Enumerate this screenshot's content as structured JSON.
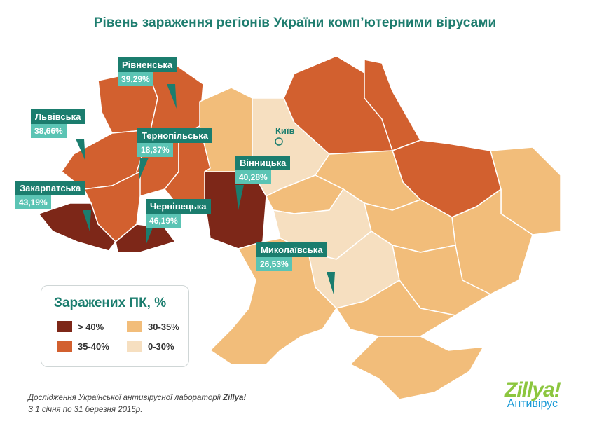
{
  "title": "Рівень зараження регіонів України комп’ютерними вірусами",
  "kyiv": "Київ",
  "colors": {
    "gt40": "#7d2718",
    "r35_40": "#d2602f",
    "r30_35": "#f2bd7a",
    "r0_30": "#f6dfc0",
    "accent": "#1b7d6e",
    "value_box": "#5bc4b4"
  },
  "callouts": [
    {
      "name": "Рівненська",
      "value": "39,29%"
    },
    {
      "name": "Львівська",
      "value": "38,66%"
    },
    {
      "name": "Тернопільська",
      "value": "18,37%"
    },
    {
      "name": "Вінницька",
      "value": "40,28%"
    },
    {
      "name": "Закарпатська",
      "value": "43,19%"
    },
    {
      "name": "Чернівецька",
      "value": "46,19%"
    },
    {
      "name": "Миколаївська",
      "value": "26,53%"
    }
  ],
  "legend": {
    "title": "Заражених ПК, %",
    "items": [
      {
        "label": "> 40%",
        "color": "#7d2718"
      },
      {
        "label": "30-35%",
        "color": "#f2bd7a"
      },
      {
        "label": "35-40%",
        "color": "#d2602f"
      },
      {
        "label": "0-30%",
        "color": "#f6dfc0"
      }
    ]
  },
  "footer": {
    "line1_prefix": "Дослідження Української антивірусної лабораторії ",
    "line1_brand": "Zillya!",
    "line2": "З 1 січня по 31 березня 2015р."
  },
  "logo": {
    "brand": "Zillya!",
    "sub": "Антивірус"
  }
}
